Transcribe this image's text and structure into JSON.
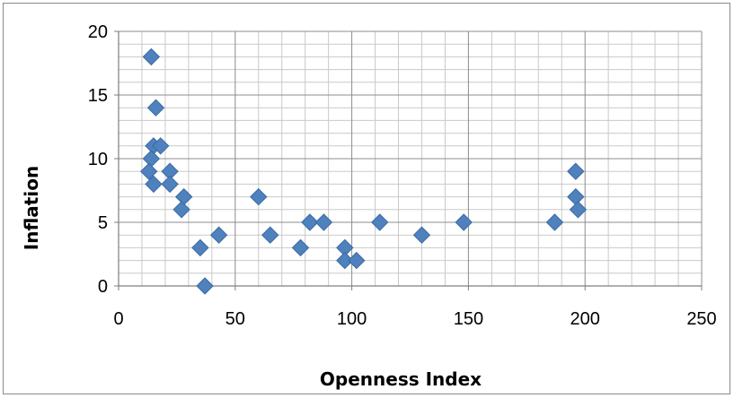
{
  "chart_data": {
    "type": "scatter",
    "title": "",
    "xlabel": "Openness Index",
    "ylabel": "Inflation",
    "xlim": [
      0,
      250
    ],
    "ylim": [
      0,
      20
    ],
    "x_major_ticks": [
      0,
      50,
      100,
      150,
      200,
      250
    ],
    "y_major_ticks": [
      0,
      5,
      10,
      15,
      20
    ],
    "x_minor_step": 10,
    "y_minor_step": 1,
    "grid": true,
    "legend": "none",
    "marker": "diamond",
    "marker_color": "#4f81bd",
    "series": [
      {
        "points": [
          [
            14,
            18
          ],
          [
            16,
            14
          ],
          [
            15,
            11
          ],
          [
            18,
            11
          ],
          [
            14,
            10
          ],
          [
            13,
            9
          ],
          [
            22,
            9
          ],
          [
            15,
            8
          ],
          [
            22,
            8
          ],
          [
            28,
            7
          ],
          [
            27,
            6
          ],
          [
            35,
            3
          ],
          [
            37,
            0
          ],
          [
            43,
            4
          ],
          [
            60,
            7
          ],
          [
            65,
            4
          ],
          [
            78,
            3
          ],
          [
            82,
            5
          ],
          [
            88,
            5
          ],
          [
            97,
            3
          ],
          [
            97,
            2
          ],
          [
            102,
            2
          ],
          [
            112,
            5
          ],
          [
            130,
            4
          ],
          [
            148,
            5
          ],
          [
            187,
            5
          ],
          [
            196,
            9
          ],
          [
            196,
            7
          ],
          [
            197,
            6
          ]
        ]
      }
    ]
  }
}
